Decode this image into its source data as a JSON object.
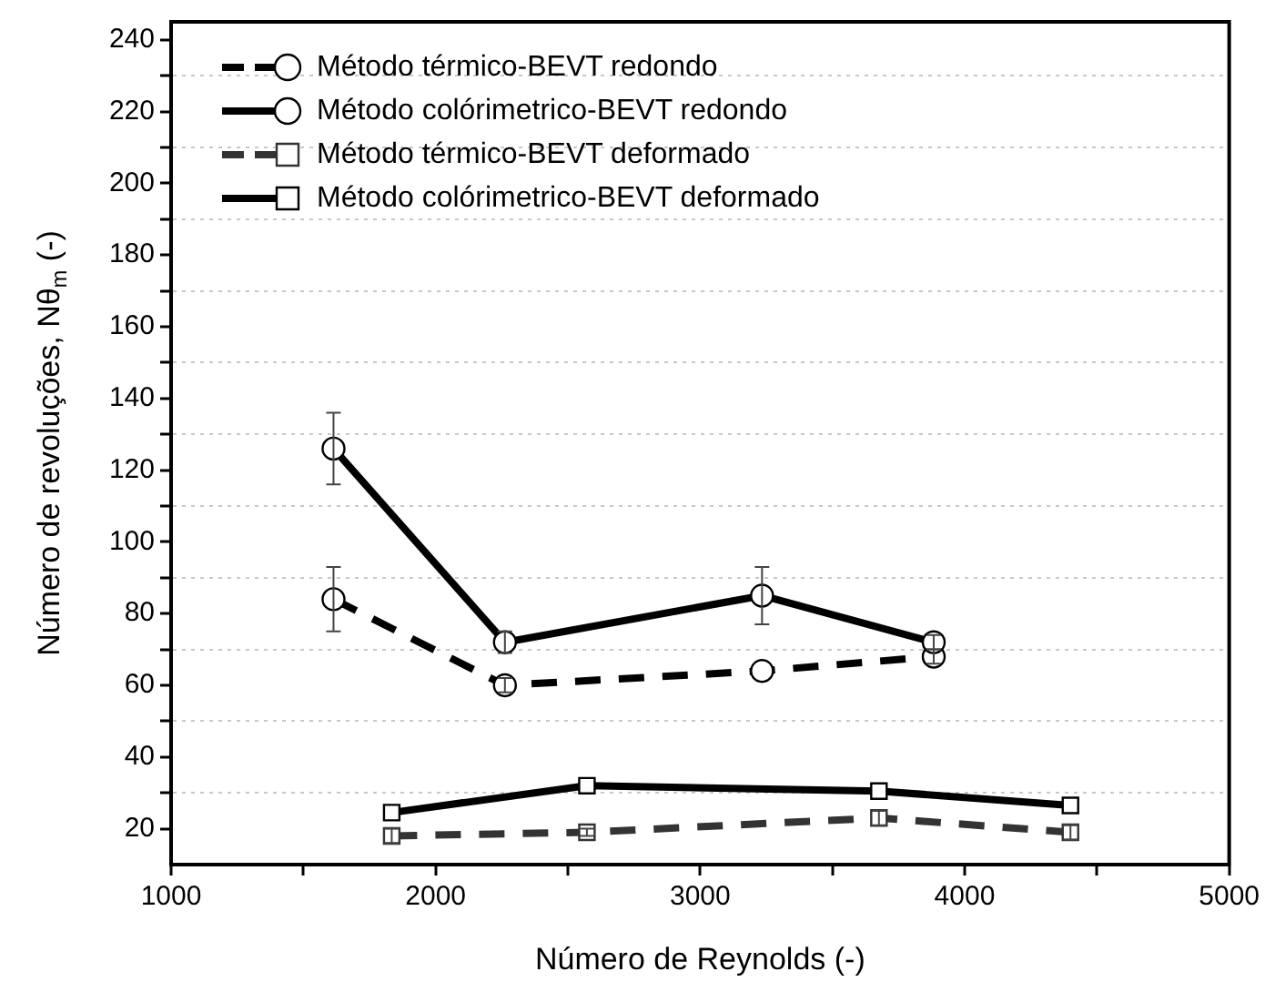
{
  "chart_data": {
    "type": "line",
    "xlabel": "Número de Reynolds (-)",
    "ylabel": "Número de revoluções, Nθ$_{m}$ (-)",
    "xlim": [
      1000,
      5000
    ],
    "xticks": [
      1000,
      {
        "value": 1500,
        "label": null
      },
      2000,
      {
        "value": 2500,
        "label": null
      },
      3000,
      {
        "value": 3500,
        "label": null
      },
      4000,
      {
        "value": 4500,
        "label": null
      },
      5000
    ],
    "ylim": [
      10,
      245
    ],
    "yticks": [
      20,
      {
        "value": 30,
        "label": null
      },
      40,
      {
        "value": 50,
        "label": null
      },
      60,
      {
        "value": 70,
        "label": null
      },
      80,
      {
        "value": 90,
        "label": null
      },
      100,
      {
        "value": 110,
        "label": null
      },
      120,
      {
        "value": 130,
        "label": null
      },
      140,
      {
        "value": 150,
        "label": null
      },
      160,
      {
        "value": 170,
        "label": null
      },
      180,
      {
        "value": 190,
        "label": null
      },
      200,
      {
        "value": 210,
        "label": null
      },
      220,
      {
        "value": 230,
        "label": null
      },
      240
    ],
    "grid": "y",
    "legend": "top left",
    "series": [
      {
        "name": "Método térmico-BEVT redondo",
        "color": "#000000",
        "marker": "circle",
        "line_style": "dashed",
        "x": [
          1614,
          2262,
          3234,
          3883
        ],
        "values": [
          84,
          60,
          64,
          68
        ],
        "errors": [
          9,
          2,
          null,
          2
        ]
      },
      {
        "name": "Método colórimetrico-BEVT redondo",
        "color": "#000000",
        "marker": "circle",
        "line_style": "solid",
        "x": [
          1614,
          2262,
          3234,
          3883
        ],
        "values": [
          126,
          72,
          85,
          72
        ],
        "errors": [
          10,
          3,
          8,
          2
        ]
      },
      {
        "name": "Método térmico-BEVT deformado",
        "color": "#333333",
        "marker": "square",
        "line_style": "dashed",
        "x": [
          1834,
          2572,
          3676,
          4400
        ],
        "values": [
          18,
          19,
          23,
          19
        ],
        "errors": [
          2,
          1,
          2,
          2
        ]
      },
      {
        "name": "Método colórimetrico-BEVT deformado",
        "color": "#000000",
        "marker": "square",
        "line_style": "solid",
        "x": [
          1834,
          2572,
          3676,
          4400
        ],
        "values": [
          24.5,
          32,
          30.5,
          26.5
        ],
        "errors": [
          null,
          null,
          null,
          null
        ]
      }
    ]
  }
}
